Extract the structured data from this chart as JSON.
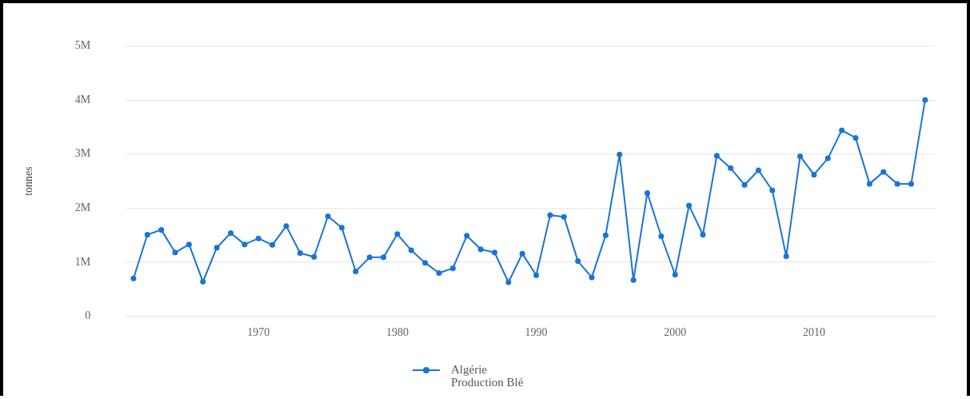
{
  "chart_data": {
    "type": "line",
    "ylabel": "tonnes",
    "x": [
      1961,
      1962,
      1963,
      1964,
      1965,
      1966,
      1967,
      1968,
      1969,
      1970,
      1971,
      1972,
      1973,
      1974,
      1975,
      1976,
      1977,
      1978,
      1979,
      1980,
      1981,
      1982,
      1983,
      1984,
      1985,
      1986,
      1987,
      1988,
      1989,
      1990,
      1991,
      1992,
      1993,
      1994,
      1995,
      1996,
      1997,
      1998,
      1999,
      2000,
      2001,
      2002,
      2003,
      2004,
      2005,
      2006,
      2007,
      2008,
      2009,
      2010,
      2011,
      2012,
      2013,
      2014,
      2015,
      2016,
      2017,
      2018
    ],
    "series": [
      {
        "name": "Algérie Production Blé",
        "color": "#1874d8",
        "values": [
          700000,
          1510000,
          1600000,
          1180000,
          1330000,
          640000,
          1270000,
          1540000,
          1330000,
          1440000,
          1320000,
          1670000,
          1170000,
          1100000,
          1850000,
          1640000,
          830000,
          1090000,
          1090000,
          1520000,
          1220000,
          990000,
          800000,
          890000,
          1490000,
          1240000,
          1180000,
          630000,
          1160000,
          760000,
          1870000,
          1840000,
          1020000,
          720000,
          1500000,
          2990000,
          670000,
          2280000,
          1480000,
          770000,
          2050000,
          1510000,
          2970000,
          2740000,
          2430000,
          2700000,
          2330000,
          1110000,
          2960000,
          2620000,
          2920000,
          3440000,
          3300000,
          2450000,
          2670000,
          2450000,
          2450000,
          4000000
        ]
      }
    ],
    "xlim": [
      1960.5,
      2018.7
    ],
    "xticks": [
      1970,
      1980,
      1990,
      2000,
      2010
    ],
    "ylim": [
      0,
      5000000
    ],
    "yticks": [
      0,
      {
        "value": 1000000,
        "label": "1M"
      },
      {
        "value": 2000000,
        "label": "2M"
      },
      {
        "value": 3000000,
        "label": "3M"
      },
      {
        "value": 4000000,
        "label": "4M"
      },
      {
        "value": 5000000,
        "label": "5M"
      }
    ],
    "grid": "y",
    "legend": "bottom",
    "marker": "circle",
    "line_style": "solid"
  }
}
